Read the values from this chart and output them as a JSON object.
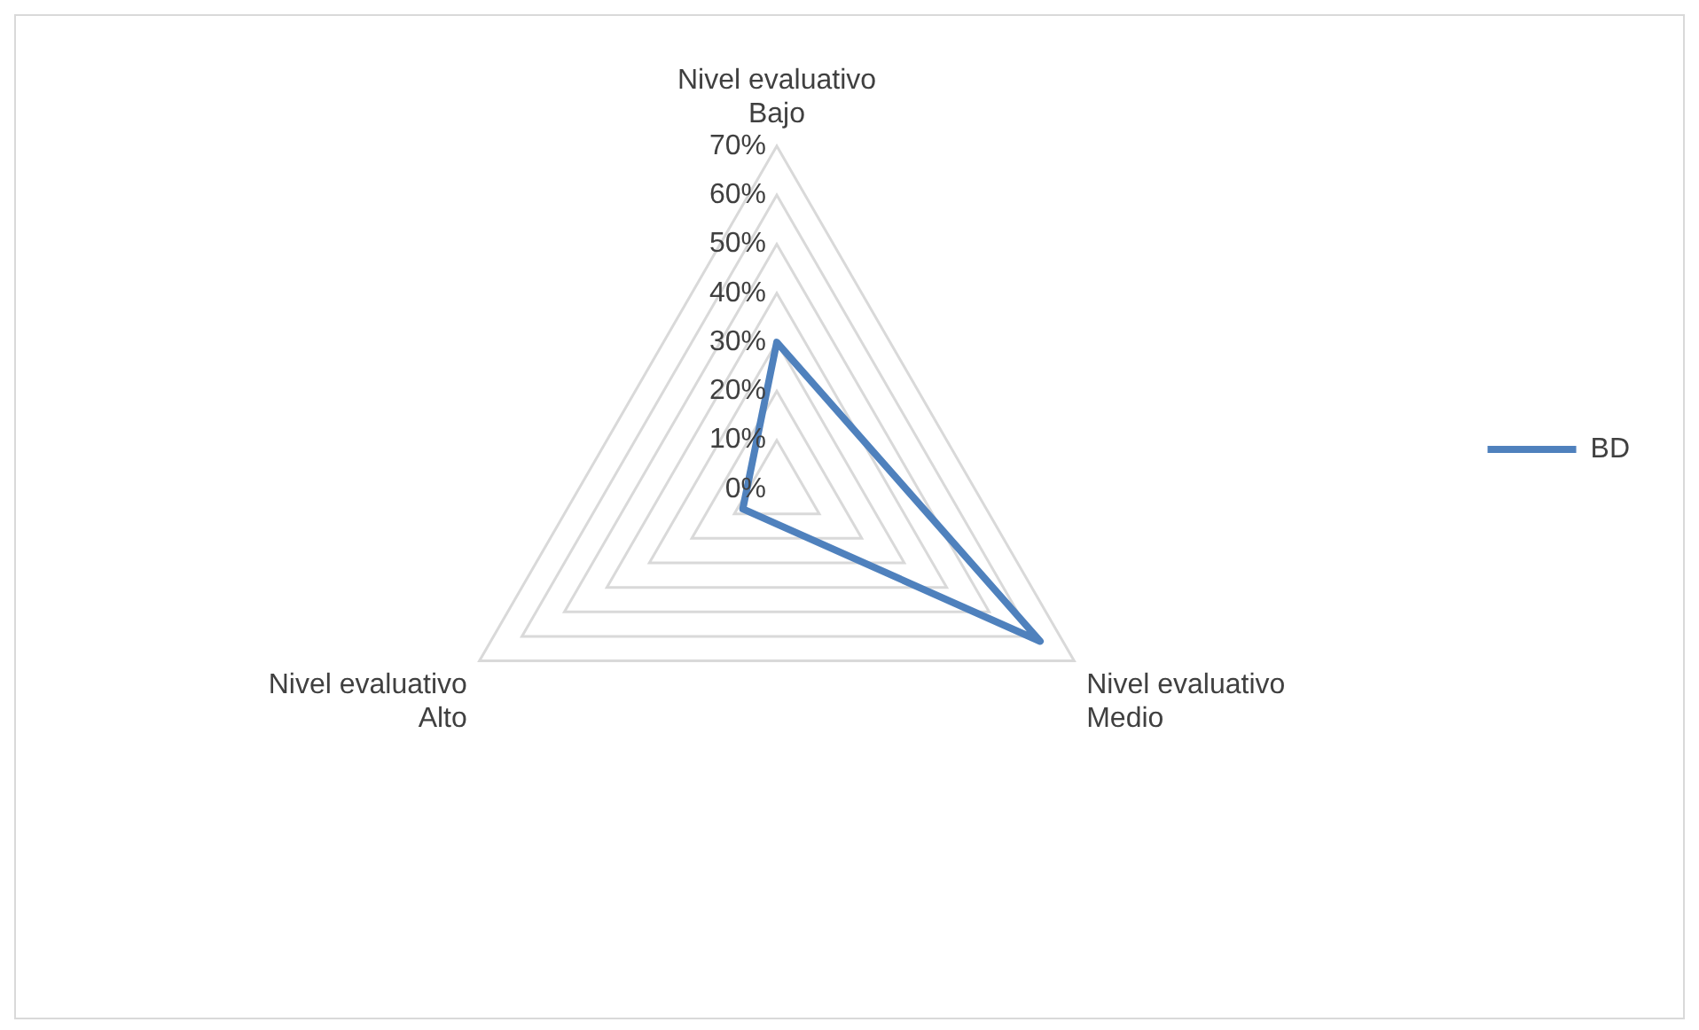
{
  "chart_data": {
    "type": "radar",
    "categories": [
      "Nivel evaluativo Bajo",
      "Nivel evaluativo Medio",
      "Nivel evaluativo Alto"
    ],
    "series": [
      {
        "name": "BD",
        "color": "#4f81bd",
        "values": [
          30,
          62,
          8
        ]
      }
    ],
    "ylim": [
      0,
      70
    ],
    "yticks": [
      {
        "value": 0,
        "label": "0%"
      },
      {
        "value": 10,
        "label": "10%"
      },
      {
        "value": 20,
        "label": "20%"
      },
      {
        "value": 30,
        "label": "30%"
      },
      {
        "value": 40,
        "label": "40%"
      },
      {
        "value": 50,
        "label": "50%"
      },
      {
        "value": 60,
        "label": "60%"
      },
      {
        "value": 70,
        "label": "70%"
      }
    ],
    "grid": true,
    "legend": "right",
    "marker": "none"
  }
}
